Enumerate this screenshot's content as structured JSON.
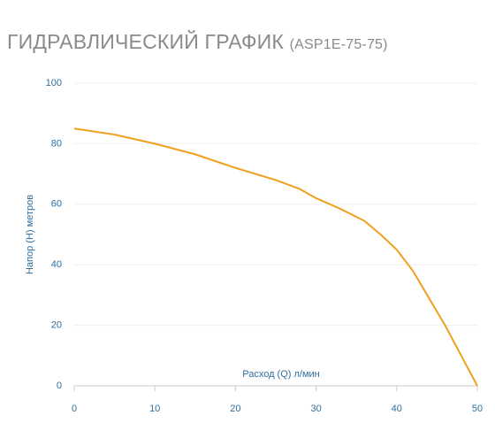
{
  "chart_data": {
    "type": "line",
    "title": "ГИДРАВЛИЧЕСКИЙ ГРАФИК",
    "subtitle": "(ASP1E-75-75)",
    "x_label": "Расход (Q) л/мин",
    "y_label": "Напор (Н) метров",
    "x": [
      0,
      5,
      10,
      15,
      20,
      25,
      28,
      30,
      33,
      36,
      38,
      40,
      42,
      44,
      46,
      48,
      50
    ],
    "series": [
      {
        "name": "Напор",
        "color": "#f0a020",
        "values": [
          85,
          83,
          80,
          76.5,
          72,
          68,
          65,
          62,
          58.5,
          54.5,
          50,
          45,
          38,
          29,
          20,
          10,
          0
        ]
      }
    ],
    "xlim": [
      0,
      50
    ],
    "ylim": [
      0,
      100
    ],
    "xticks": [
      0,
      10,
      20,
      30,
      40,
      50
    ],
    "yticks": [
      0,
      20,
      40,
      60,
      80,
      100
    ],
    "grid": true
  }
}
